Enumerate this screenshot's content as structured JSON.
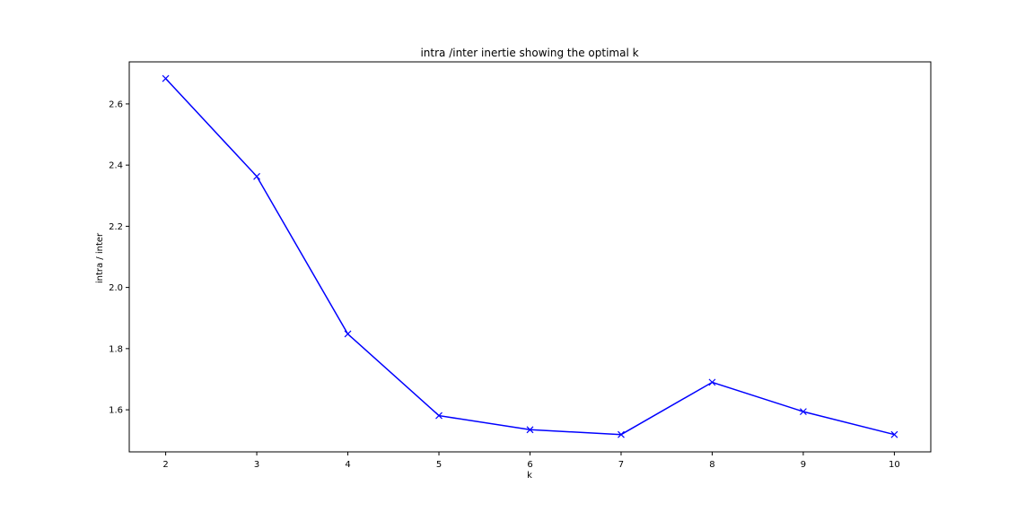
{
  "chart_data": {
    "type": "line",
    "title": "intra /inter inertie showing the optimal k",
    "xlabel": "k",
    "ylabel": "intra / inter",
    "x": [
      2,
      3,
      4,
      5,
      6,
      7,
      8,
      9,
      10
    ],
    "series": [
      {
        "values": [
          2.683,
          2.363,
          1.848,
          1.581,
          1.535,
          1.519,
          1.69,
          1.594,
          1.519
        ]
      }
    ],
    "xlim": [
      1.6,
      10.4
    ],
    "ylim": [
      1.4625,
      2.7375
    ],
    "xticks": [
      2,
      3,
      4,
      5,
      6,
      7,
      8,
      9,
      10
    ],
    "yticks": [
      1.6,
      1.8,
      2.0,
      2.2,
      2.4,
      2.6
    ],
    "ytick_labels": [
      "1.6",
      "1.8",
      "2.0",
      "2.2",
      "2.4",
      "2.6"
    ],
    "line_color": "#0000ff",
    "marker": "x",
    "grid": false
  }
}
